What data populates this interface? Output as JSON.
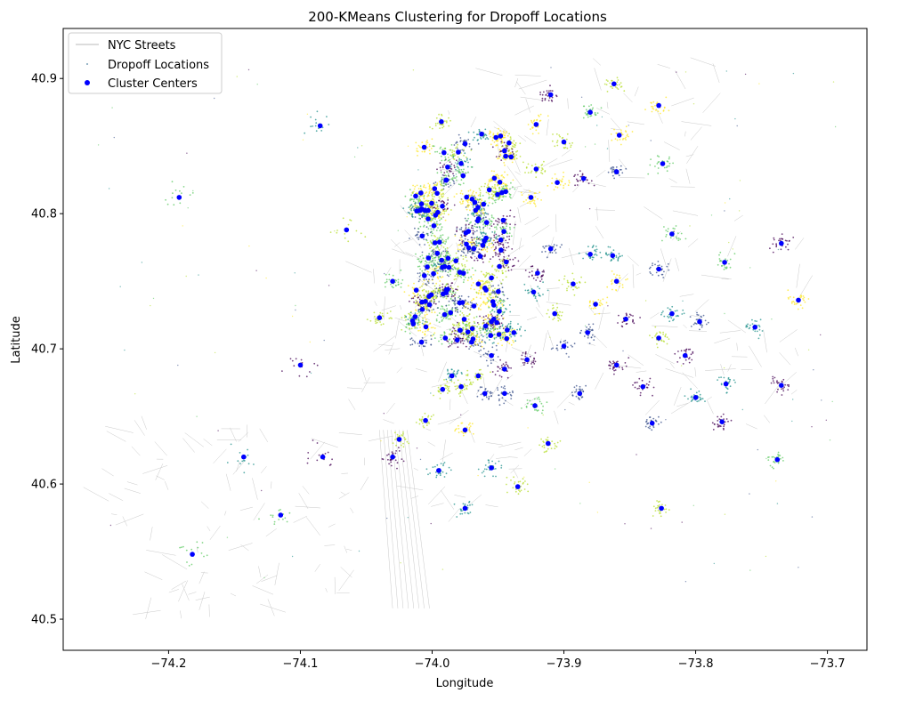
{
  "chart_data": {
    "type": "scatter",
    "title": "200-KMeans Clustering for Dropoff Locations",
    "xlabel": "Longitude",
    "ylabel": "Latitude",
    "xlim": [
      -74.28,
      -73.67
    ],
    "ylim": [
      40.477,
      40.937
    ],
    "x_ticks": [
      -74.2,
      -74.1,
      -74.0,
      -73.9,
      -73.8,
      -73.7
    ],
    "x_tick_labels": [
      "−74.2",
      "−74.1",
      "−74.0",
      "−73.9",
      "−73.8",
      "−73.7"
    ],
    "y_ticks": [
      40.5,
      40.6,
      40.7,
      40.8,
      40.9
    ],
    "y_tick_labels": [
      "40.5",
      "40.6",
      "40.7",
      "40.8",
      "40.9"
    ],
    "grid": false,
    "legend_position": "upper-left",
    "legend": [
      {
        "label": "NYC Streets",
        "marker": "line",
        "color": "#c8c8c8"
      },
      {
        "label": "Dropoff Locations",
        "marker": "small-dot",
        "color": "#7aa0b8"
      },
      {
        "label": "Cluster Centers",
        "marker": "dot",
        "color": "#0000ff"
      }
    ],
    "cluster_center_color": "#0000ff",
    "viridis_palette": [
      "#440154",
      "#3b528b",
      "#21918c",
      "#5ec962",
      "#b5de2b",
      "#fde725"
    ],
    "series": [
      {
        "name": "Cluster Centers",
        "points": [
          [
            -74.192,
            40.812
          ],
          [
            -74.085,
            40.865
          ],
          [
            -74.065,
            40.788
          ],
          [
            -73.993,
            40.868
          ],
          [
            -74.1,
            40.688
          ],
          [
            -74.182,
            40.548
          ],
          [
            -74.143,
            40.62
          ],
          [
            -74.083,
            40.62
          ],
          [
            -74.115,
            40.577
          ],
          [
            -74.03,
            40.75
          ],
          [
            -74.04,
            40.723
          ],
          [
            -73.91,
            40.888
          ],
          [
            -73.862,
            40.896
          ],
          [
            -73.828,
            40.88
          ],
          [
            -73.9,
            40.853
          ],
          [
            -73.858,
            40.858
          ],
          [
            -73.921,
            40.866
          ],
          [
            -73.88,
            40.875
          ],
          [
            -73.825,
            40.837
          ],
          [
            -73.86,
            40.831
          ],
          [
            -73.885,
            40.826
          ],
          [
            -73.905,
            40.823
          ],
          [
            -73.921,
            40.833
          ],
          [
            -73.94,
            40.842
          ],
          [
            -73.925,
            40.812
          ],
          [
            -73.818,
            40.785
          ],
          [
            -73.778,
            40.764
          ],
          [
            -73.735,
            40.778
          ],
          [
            -73.722,
            40.736
          ],
          [
            -73.828,
            40.759
          ],
          [
            -73.86,
            40.75
          ],
          [
            -73.893,
            40.748
          ],
          [
            -73.88,
            40.77
          ],
          [
            -73.863,
            40.769
          ],
          [
            -73.91,
            40.774
          ],
          [
            -73.92,
            40.756
          ],
          [
            -73.923,
            40.742
          ],
          [
            -73.907,
            40.726
          ],
          [
            -73.876,
            40.733
          ],
          [
            -73.853,
            40.722
          ],
          [
            -73.828,
            40.708
          ],
          [
            -73.818,
            40.726
          ],
          [
            -73.797,
            40.72
          ],
          [
            -73.755,
            40.716
          ],
          [
            -73.808,
            40.695
          ],
          [
            -73.882,
            40.712
          ],
          [
            -73.9,
            40.702
          ],
          [
            -73.928,
            40.692
          ],
          [
            -73.945,
            40.685
          ],
          [
            -73.965,
            40.68
          ],
          [
            -73.985,
            40.68
          ],
          [
            -73.96,
            40.667
          ],
          [
            -73.978,
            40.672
          ],
          [
            -73.992,
            40.67
          ],
          [
            -73.945,
            40.667
          ],
          [
            -73.922,
            40.658
          ],
          [
            -73.888,
            40.667
          ],
          [
            -73.86,
            40.688
          ],
          [
            -73.84,
            40.672
          ],
          [
            -73.8,
            40.664
          ],
          [
            -73.777,
            40.674
          ],
          [
            -73.735,
            40.673
          ],
          [
            -73.78,
            40.646
          ],
          [
            -73.833,
            40.645
          ],
          [
            -74.005,
            40.647
          ],
          [
            -74.025,
            40.633
          ],
          [
            -74.03,
            40.62
          ],
          [
            -73.995,
            40.61
          ],
          [
            -73.975,
            40.64
          ],
          [
            -73.912,
            40.63
          ],
          [
            -73.955,
            40.612
          ],
          [
            -73.935,
            40.598
          ],
          [
            -73.975,
            40.582
          ],
          [
            -73.826,
            40.582
          ],
          [
            -73.738,
            40.618
          ],
          [
            -73.955,
            40.72
          ],
          [
            -73.938,
            40.712
          ],
          [
            -73.96,
            40.745
          ],
          [
            -73.99,
            40.708
          ],
          [
            -74.008,
            40.705
          ],
          [
            -73.97,
            40.705
          ],
          [
            -73.955,
            40.695
          ]
        ]
      }
    ],
    "dense_center_area": "Manhattan, approximately lon -74.02 to -73.93, lat 40.70 to 40.87, roughly 118 further centers"
  }
}
